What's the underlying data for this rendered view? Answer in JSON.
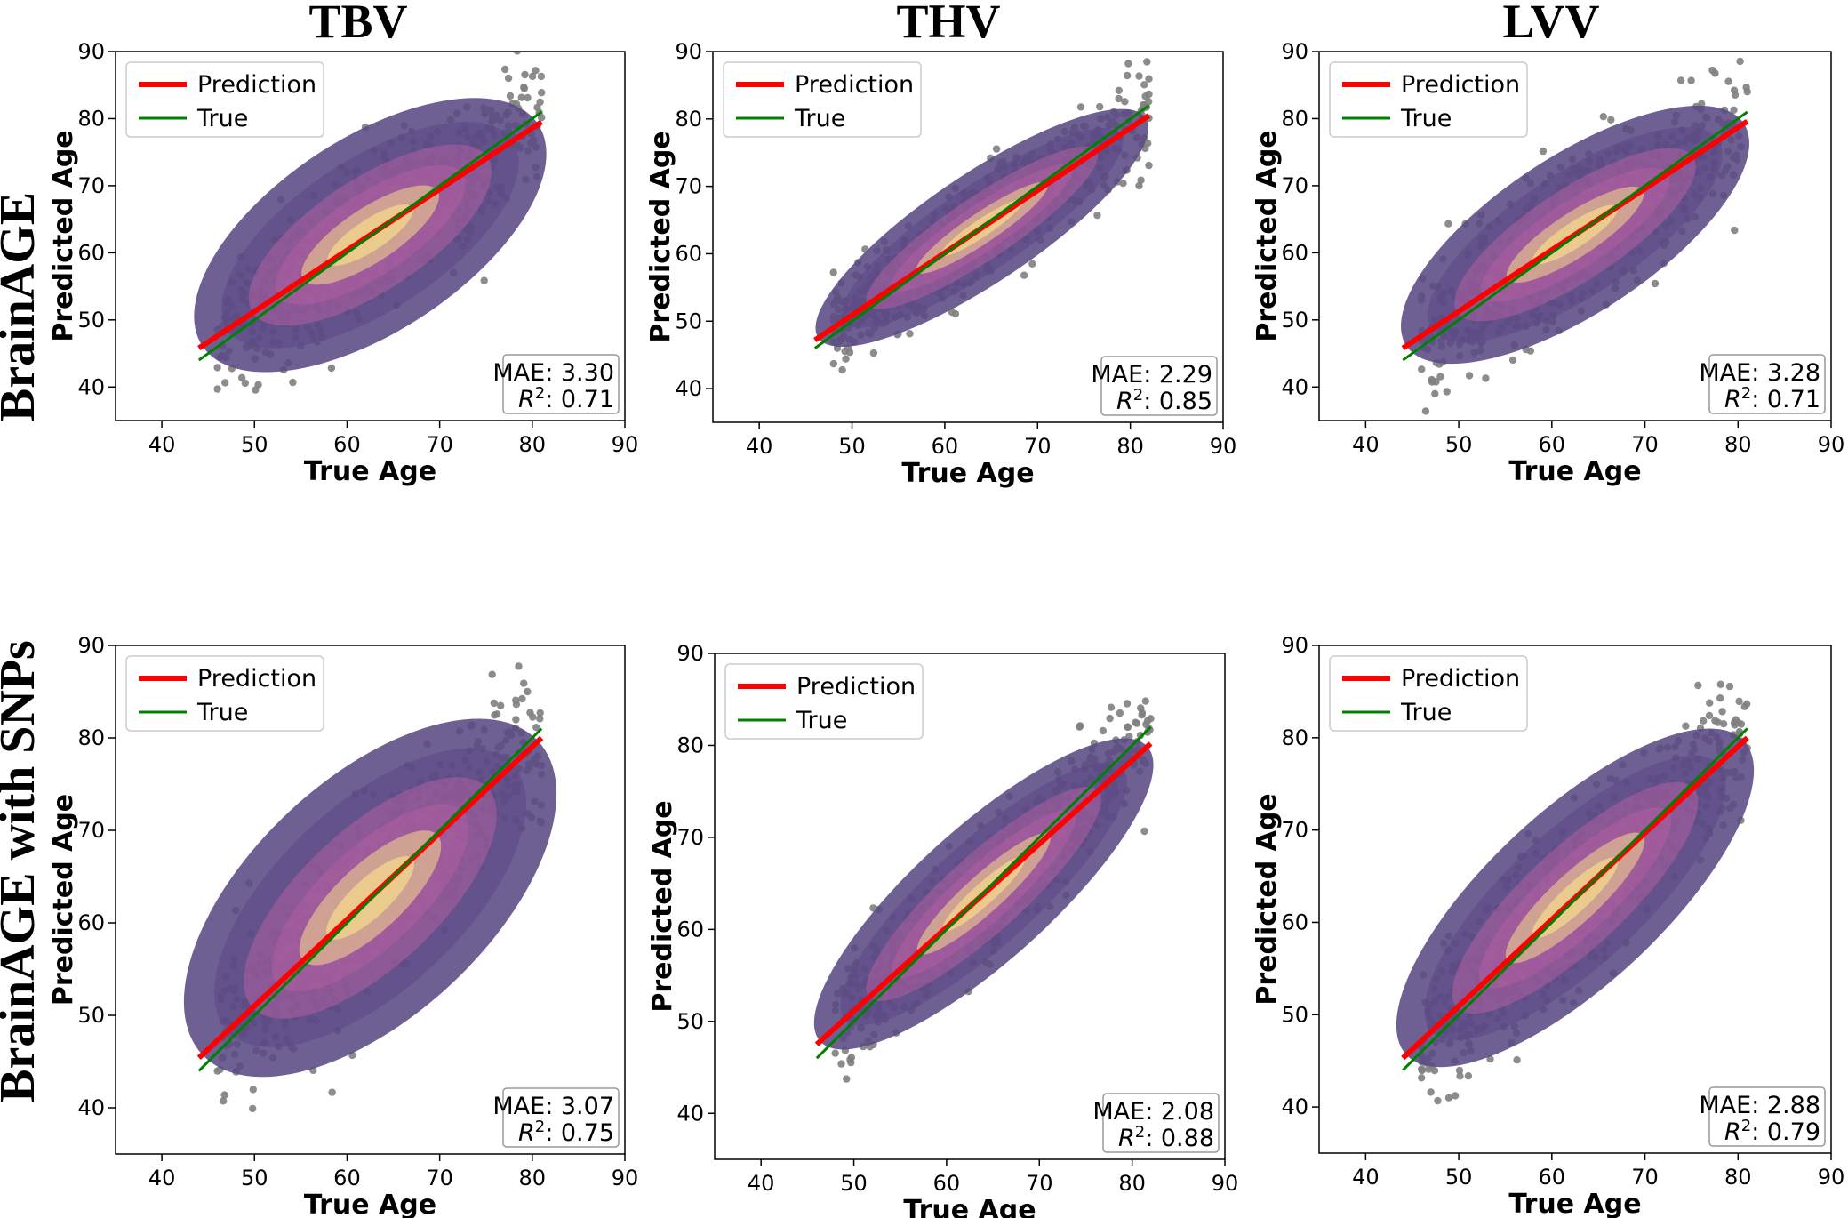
{
  "colors": {
    "prediction": "#ff0000",
    "true": "#008000",
    "points": "#808080",
    "density_low": "#5b4a85",
    "density_mid": "#b05fa0",
    "density_high": "#f6dc8c"
  },
  "column_titles": [
    "TBV",
    "THV",
    "LVV"
  ],
  "row_titles": [
    "BrainAGE",
    "BrainAGE with SNPs"
  ],
  "chart_data": [
    {
      "type": "scatter",
      "row": 0,
      "col": 0,
      "title": "TBV",
      "xlabel": "True Age",
      "ylabel": "Predicted Age",
      "xlim": [
        35,
        90
      ],
      "ylim": [
        35,
        90
      ],
      "xticks": [
        40,
        50,
        60,
        70,
        80,
        90
      ],
      "yticks": [
        40,
        50,
        60,
        70,
        80,
        90
      ],
      "legend": [
        "Prediction",
        "True"
      ],
      "legend_position": "upper left",
      "mae_text": "MAE: 3.30",
      "r2_value": ": 0.71",
      "mae": 3.3,
      "r2": 0.71,
      "x_range": [
        44,
        81
      ],
      "prediction_line": {
        "x": [
          44,
          81
        ],
        "y": [
          45.8,
          79.5
        ]
      },
      "true_line": {
        "x": [
          44,
          81
        ],
        "y": [
          44,
          81
        ]
      },
      "spread": 4.5,
      "orientation": "steep"
    },
    {
      "type": "scatter",
      "row": 0,
      "col": 1,
      "title": "THV",
      "xlabel": "True Age",
      "ylabel": "Predicted Age",
      "xlim": [
        35,
        90
      ],
      "ylim": [
        35,
        90
      ],
      "xticks": [
        40,
        50,
        60,
        70,
        80,
        90
      ],
      "yticks": [
        40,
        50,
        60,
        70,
        80,
        90
      ],
      "legend": [
        "Prediction",
        "True"
      ],
      "legend_position": "upper left",
      "mae_text": "MAE: 2.29",
      "r2_value": ": 0.85",
      "mae": 2.29,
      "r2": 0.85,
      "x_range": [
        46,
        82
      ],
      "prediction_line": {
        "x": [
          46,
          82
        ],
        "y": [
          47.2,
          80.5
        ]
      },
      "true_line": {
        "x": [
          46,
          82
        ],
        "y": [
          46,
          82
        ]
      },
      "spread": 3.1,
      "orientation": "flat"
    },
    {
      "type": "scatter",
      "row": 0,
      "col": 2,
      "title": "LVV",
      "xlabel": "True Age",
      "ylabel": "Predicted Age",
      "xlim": [
        35,
        90
      ],
      "ylim": [
        35,
        90
      ],
      "xticks": [
        40,
        50,
        60,
        70,
        80,
        90
      ],
      "yticks": [
        40,
        50,
        60,
        70,
        80,
        90
      ],
      "legend": [
        "Prediction",
        "True"
      ],
      "legend_position": "upper left",
      "mae_text": "MAE: 3.28",
      "r2_value": ": 0.71",
      "mae": 3.28,
      "r2": 0.71,
      "x_range": [
        44,
        81
      ],
      "prediction_line": {
        "x": [
          44,
          81
        ],
        "y": [
          45.8,
          79.6
        ]
      },
      "true_line": {
        "x": [
          44,
          81
        ],
        "y": [
          44,
          81
        ]
      },
      "spread": 4.5,
      "orientation": "flat"
    },
    {
      "type": "scatter",
      "row": 1,
      "col": 0,
      "title": "TBV",
      "xlabel": "True Age",
      "ylabel": "Predicted Age",
      "xlim": [
        35,
        90
      ],
      "ylim": [
        35,
        90
      ],
      "xticks": [
        40,
        50,
        60,
        70,
        80,
        90
      ],
      "yticks": [
        40,
        50,
        60,
        70,
        80,
        90
      ],
      "legend": [
        "Prediction",
        "True"
      ],
      "legend_position": "upper left",
      "mae_text": "MAE: 3.07",
      "r2_value": ": 0.75",
      "mae": 3.07,
      "r2": 0.75,
      "x_range": [
        44,
        81
      ],
      "prediction_line": {
        "x": [
          44,
          81
        ],
        "y": [
          45.4,
          80
        ]
      },
      "true_line": {
        "x": [
          44,
          81
        ],
        "y": [
          44,
          81
        ]
      },
      "spread": 4.0,
      "orientation": "steep"
    },
    {
      "type": "scatter",
      "row": 1,
      "col": 1,
      "title": "THV",
      "xlabel": "True Age",
      "ylabel": "Predicted Age",
      "xlim": [
        35,
        90
      ],
      "ylim": [
        35,
        90
      ],
      "xticks": [
        40,
        50,
        60,
        70,
        80,
        90
      ],
      "yticks": [
        40,
        50,
        60,
        70,
        80,
        90
      ],
      "legend": [
        "Prediction",
        "True"
      ],
      "legend_position": "upper left",
      "mae_text": "MAE: 2.08",
      "r2_value": ": 0.88",
      "mae": 2.08,
      "r2": 0.88,
      "x_range": [
        46,
        82
      ],
      "prediction_line": {
        "x": [
          46,
          82
        ],
        "y": [
          47.5,
          80.2
        ]
      },
      "true_line": {
        "x": [
          46,
          82
        ],
        "y": [
          46,
          82
        ]
      },
      "spread": 2.8,
      "orientation": "flat"
    },
    {
      "type": "scatter",
      "row": 1,
      "col": 2,
      "title": "LVV",
      "xlabel": "True Age",
      "ylabel": "Predicted Age",
      "xlim": [
        35,
        90
      ],
      "ylim": [
        35,
        90
      ],
      "xticks": [
        40,
        50,
        60,
        70,
        80,
        90
      ],
      "yticks": [
        40,
        50,
        60,
        70,
        80,
        90
      ],
      "legend": [
        "Prediction",
        "True"
      ],
      "legend_position": "upper left",
      "mae_text": "MAE: 2.88",
      "r2_value": ": 0.79",
      "mae": 2.88,
      "r2": 0.79,
      "x_range": [
        44,
        81
      ],
      "prediction_line": {
        "x": [
          44,
          81
        ],
        "y": [
          45.3,
          80
        ]
      },
      "true_line": {
        "x": [
          44,
          81
        ],
        "y": [
          44,
          81
        ]
      },
      "spread": 3.6,
      "orientation": "flat"
    }
  ]
}
